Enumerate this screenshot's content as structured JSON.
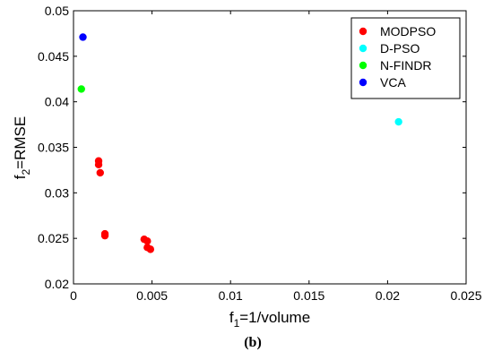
{
  "chart_data": {
    "type": "scatter",
    "xlabel": "f1=1/volume",
    "xlabel_parts": {
      "base": "f",
      "sub": "1",
      "rest": "=1/volume"
    },
    "ylabel": "f2=RMSE",
    "ylabel_parts": {
      "base": "f",
      "sub": "2",
      "rest": "=RMSE"
    },
    "xlim": [
      0,
      0.025
    ],
    "ylim": [
      0.02,
      0.05
    ],
    "xticks": [
      "0",
      "0.005",
      "0.01",
      "0.015",
      "0.02",
      "0.025"
    ],
    "yticks": [
      "0.02",
      "0.025",
      "0.03",
      "0.035",
      "0.04",
      "0.045",
      "0.05"
    ],
    "xtick_values": [
      0,
      0.005,
      0.01,
      0.015,
      0.02,
      0.025
    ],
    "ytick_values": [
      0.02,
      0.025,
      0.03,
      0.035,
      0.04,
      0.045,
      0.05
    ],
    "grid": false,
    "legend_position": "top-right",
    "series": [
      {
        "name": "MODPSO",
        "color": "#ff0000",
        "points": [
          [
            0.0016,
            0.0335
          ],
          [
            0.0016,
            0.0331
          ],
          [
            0.0017,
            0.0322
          ],
          [
            0.002,
            0.0255
          ],
          [
            0.002,
            0.0253
          ],
          [
            0.0045,
            0.0249
          ],
          [
            0.0047,
            0.0247
          ],
          [
            0.0047,
            0.024
          ],
          [
            0.0049,
            0.0238
          ]
        ]
      },
      {
        "name": "D-PSO",
        "color": "#00ffff",
        "points": [
          [
            0.0207,
            0.0378
          ]
        ]
      },
      {
        "name": "N-FINDR",
        "color": "#00ff00",
        "points": [
          [
            0.0005,
            0.0414
          ]
        ]
      },
      {
        "name": "VCA",
        "color": "#0000ff",
        "points": [
          [
            0.0006,
            0.0471
          ]
        ]
      }
    ]
  },
  "caption": {
    "text": "(b)"
  }
}
